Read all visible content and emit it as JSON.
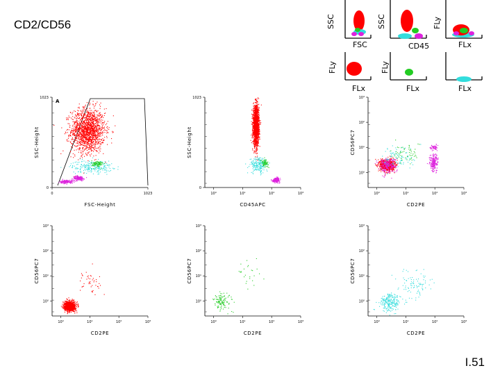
{
  "title": "CD2/CD56",
  "page_number": "I.51",
  "legend": {
    "row1": [
      {
        "xlabel": "FSC",
        "ylabel": "SSC"
      },
      {
        "xlabel": "CD45",
        "ylabel": "SSC"
      },
      {
        "xlabel": "FLx",
        "ylabel": "FLy"
      }
    ],
    "row2": [
      {
        "xlabel": "FLx",
        "ylabel": "FLy"
      },
      {
        "xlabel": "FLx",
        "ylabel": "FLy"
      },
      {
        "xlabel": "FLx",
        "ylabel": ""
      }
    ]
  },
  "colors": {
    "red": "#ff0000",
    "green": "#22cc22",
    "cyan": "#33dddd",
    "magenta": "#dd22dd"
  },
  "chart_data": [
    {
      "type": "scatter",
      "name": "plot-1",
      "xlabel": "FSC-Height",
      "ylabel": "SSC-Height",
      "gate": "A",
      "xticks": [
        "0",
        "1023"
      ],
      "yticks": [
        "0",
        "1023"
      ],
      "xscale": "linear",
      "yscale": "linear",
      "populations": [
        {
          "color": "red",
          "center": [
            380,
            650
          ],
          "spread": [
            180,
            250
          ],
          "count": 1600
        },
        {
          "color": "cyan",
          "center": [
            420,
            240
          ],
          "spread": [
            220,
            70
          ],
          "count": 220
        },
        {
          "color": "green",
          "center": [
            480,
            270
          ],
          "spread": [
            60,
            40
          ],
          "count": 90
        },
        {
          "color": "magenta",
          "center": [
            150,
            70
          ],
          "spread": [
            70,
            20
          ],
          "count": 140
        },
        {
          "color": "magenta",
          "center": [
            280,
            110
          ],
          "spread": [
            60,
            25
          ],
          "count": 160
        }
      ]
    },
    {
      "type": "scatter",
      "name": "plot-2",
      "xlabel": "CD45APC",
      "ylabel": "SSC-Height",
      "xticks": [
        "10⁰",
        "10¹",
        "10²",
        "10³"
      ],
      "yticks": [
        "0",
        "1023"
      ],
      "xscale": "log",
      "yscale": "linear",
      "populations": [
        {
          "color": "red",
          "center": [
            1.45,
            700
          ],
          "spread": [
            0.1,
            220
          ],
          "count": 1800
        },
        {
          "color": "cyan",
          "center": [
            1.55,
            260
          ],
          "spread": [
            0.3,
            90
          ],
          "count": 200
        },
        {
          "color": "green",
          "center": [
            1.75,
            280
          ],
          "spread": [
            0.12,
            40
          ],
          "count": 70
        },
        {
          "color": "magenta",
          "center": [
            2.15,
            90
          ],
          "spread": [
            0.12,
            25
          ],
          "count": 180
        }
      ]
    },
    {
      "type": "scatter",
      "name": "plot-3",
      "xlabel": "CD2PE",
      "ylabel": "CD56PC7",
      "xticks": [
        "10⁰",
        "10¹",
        "10²",
        "10³"
      ],
      "yticks": [
        "10⁰",
        "10¹",
        "10²",
        "10³"
      ],
      "xscale": "log",
      "yscale": "log",
      "populations": [
        {
          "color": "red",
          "center": [
            0.35,
            0.3
          ],
          "spread": [
            0.25,
            0.22
          ],
          "count": 900
        },
        {
          "color": "magenta",
          "center": [
            0.35,
            0.3
          ],
          "spread": [
            0.3,
            0.3
          ],
          "count": 250
        },
        {
          "color": "magenta",
          "center": [
            1.95,
            0.4
          ],
          "spread": [
            0.15,
            0.35
          ],
          "count": 200
        },
        {
          "color": "magenta",
          "center": [
            1.95,
            1.0
          ],
          "spread": [
            0.12,
            0.12
          ],
          "count": 60
        },
        {
          "color": "green",
          "center": [
            1.0,
            0.8
          ],
          "spread": [
            0.5,
            0.4
          ],
          "count": 60
        },
        {
          "color": "cyan",
          "center": [
            0.8,
            0.6
          ],
          "spread": [
            0.6,
            0.5
          ],
          "count": 80
        }
      ]
    },
    {
      "type": "scatter",
      "name": "plot-4",
      "xlabel": "CD2PE",
      "ylabel": "CD56PC7",
      "xticks": [
        "10⁰",
        "10¹",
        "10²",
        "10³"
      ],
      "yticks": [
        "10⁰",
        "10¹",
        "10²",
        "10³"
      ],
      "xscale": "log",
      "yscale": "log",
      "populations": [
        {
          "color": "red",
          "center": [
            0.3,
            -0.2
          ],
          "spread": [
            0.18,
            0.18
          ],
          "count": 1300
        },
        {
          "color": "red",
          "center": [
            1.0,
            0.8
          ],
          "spread": [
            0.6,
            0.6
          ],
          "count": 45
        }
      ]
    },
    {
      "type": "scatter",
      "name": "plot-5",
      "xlabel": "CD2PE",
      "ylabel": "CD56PC7",
      "xticks": [
        "10⁰",
        "10¹",
        "10²",
        "10³"
      ],
      "yticks": [
        "10⁰",
        "10¹",
        "10²",
        "10³"
      ],
      "xscale": "log",
      "yscale": "log",
      "populations": [
        {
          "color": "green",
          "center": [
            0.3,
            0.0
          ],
          "spread": [
            0.3,
            0.35
          ],
          "count": 110
        },
        {
          "color": "green",
          "center": [
            1.2,
            1.0
          ],
          "spread": [
            0.6,
            0.6
          ],
          "count": 25
        }
      ]
    },
    {
      "type": "scatter",
      "name": "plot-6",
      "xlabel": "CD2PE",
      "ylabel": "CD56PC7",
      "xticks": [
        "10⁰",
        "10¹",
        "10²",
        "10³"
      ],
      "yticks": [
        "10⁰",
        "10¹",
        "10²",
        "10³"
      ],
      "xscale": "log",
      "yscale": "log",
      "populations": [
        {
          "color": "cyan",
          "center": [
            0.45,
            -0.05
          ],
          "spread": [
            0.35,
            0.35
          ],
          "count": 230
        },
        {
          "color": "cyan",
          "center": [
            1.3,
            0.7
          ],
          "spread": [
            0.6,
            0.6
          ],
          "count": 90
        }
      ]
    }
  ]
}
